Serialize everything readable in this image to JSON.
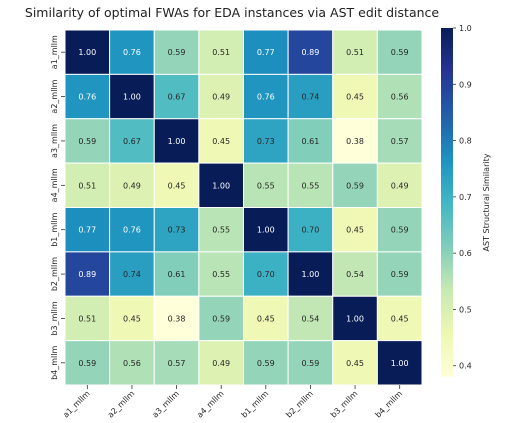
{
  "chart_data": {
    "type": "heatmap",
    "title": "Similarity of optimal FWAs for EDA instances via AST edit distance",
    "row_labels": [
      "a1_mllm",
      "a2_mllm",
      "a3_mllm",
      "a4_mllm",
      "b1_mllm",
      "b2_mllm",
      "b3_mllm",
      "b4_mllm"
    ],
    "col_labels": [
      "a1_mllm",
      "a2_mllm",
      "a3_mllm",
      "a4_mllm",
      "b1_mllm",
      "b2_mllm",
      "b3_mllm",
      "b4_mllm"
    ],
    "values": [
      [
        1.0,
        0.76,
        0.59,
        0.51,
        0.77,
        0.89,
        0.51,
        0.59
      ],
      [
        0.76,
        1.0,
        0.67,
        0.49,
        0.76,
        0.74,
        0.45,
        0.56
      ],
      [
        0.59,
        0.67,
        1.0,
        0.45,
        0.73,
        0.61,
        0.38,
        0.57
      ],
      [
        0.51,
        0.49,
        0.45,
        1.0,
        0.55,
        0.55,
        0.59,
        0.49
      ],
      [
        0.77,
        0.76,
        0.73,
        0.55,
        1.0,
        0.7,
        0.45,
        0.59
      ],
      [
        0.89,
        0.74,
        0.61,
        0.55,
        0.7,
        1.0,
        0.54,
        0.59
      ],
      [
        0.51,
        0.45,
        0.38,
        0.59,
        0.45,
        0.54,
        1.0,
        0.45
      ],
      [
        0.59,
        0.56,
        0.57,
        0.49,
        0.59,
        0.59,
        0.45,
        1.0
      ]
    ],
    "colorbar": {
      "label": "AST Structural Similarity",
      "range": [
        0.38,
        1.0
      ],
      "ticks": [
        0.4,
        0.5,
        0.6,
        0.7,
        0.8,
        0.9,
        1.0
      ],
      "tick_labels": [
        "0.4",
        "0.5",
        "0.6",
        "0.7",
        "0.8",
        "0.9",
        "1.0"
      ],
      "colormap": "YlGnBu",
      "colormap_stops": [
        "#ffffd9",
        "#edf8b1",
        "#c7e9b4",
        "#7fcdbb",
        "#41b6c4",
        "#1d91c0",
        "#225ea8",
        "#253494",
        "#081d58"
      ]
    },
    "annotation_format": "0.00"
  }
}
